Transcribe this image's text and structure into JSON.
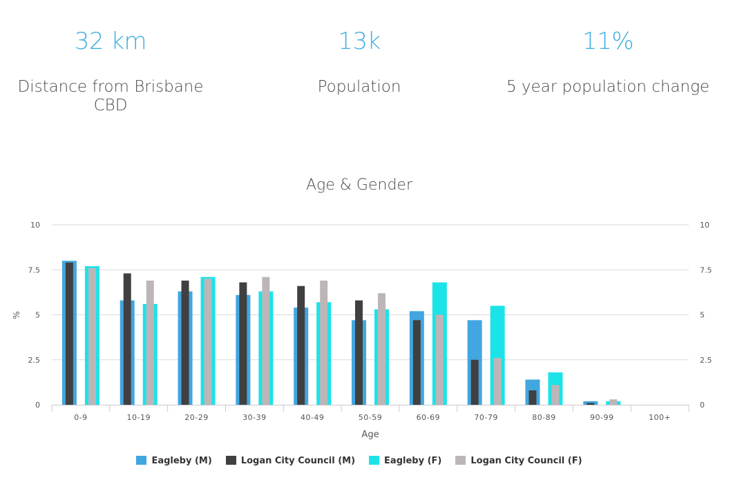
{
  "stats": [
    {
      "value": "32 km",
      "label": "Distance from Brisbane CBD"
    },
    {
      "value": "13k",
      "label": "Population"
    },
    {
      "value": "11%",
      "label": "5 year population change"
    }
  ],
  "colors": {
    "eagleby_m": "#42a6e0",
    "logan_m": "#404040",
    "eagleby_f": "#1ce3e8",
    "logan_f": "#bdb6b8",
    "grid": "#d9d9d9",
    "axis_text": "#555555"
  },
  "chart_data": {
    "type": "bar",
    "title": "Age & Gender",
    "xlabel": "Age",
    "ylabel": "%",
    "ylim": [
      0,
      10
    ],
    "yticks": [
      "0",
      "2.5",
      "5",
      "7.5",
      "10"
    ],
    "grid": true,
    "legend_position": "bottom",
    "categories": [
      "0-9",
      "10-19",
      "20-29",
      "30-39",
      "40-49",
      "50-59",
      "60-69",
      "70-79",
      "80-89",
      "90-99",
      "100+"
    ],
    "series": [
      {
        "name": "Eagleby (M)",
        "values": [
          8.0,
          5.8,
          6.3,
          6.1,
          5.4,
          4.7,
          5.2,
          4.7,
          1.4,
          0.2,
          0
        ]
      },
      {
        "name": "Logan City Council (M)",
        "values": [
          7.9,
          7.3,
          6.9,
          6.8,
          6.6,
          5.8,
          4.7,
          2.5,
          0.8,
          0.1,
          0
        ]
      },
      {
        "name": "Eagleby (F)",
        "values": [
          7.7,
          5.6,
          7.1,
          6.3,
          5.7,
          5.3,
          6.8,
          5.5,
          1.8,
          0.2,
          0
        ]
      },
      {
        "name": "Logan City Council (F)",
        "values": [
          7.6,
          6.9,
          7.0,
          7.1,
          6.9,
          6.2,
          5.0,
          2.6,
          1.1,
          0.3,
          0
        ]
      }
    ]
  }
}
